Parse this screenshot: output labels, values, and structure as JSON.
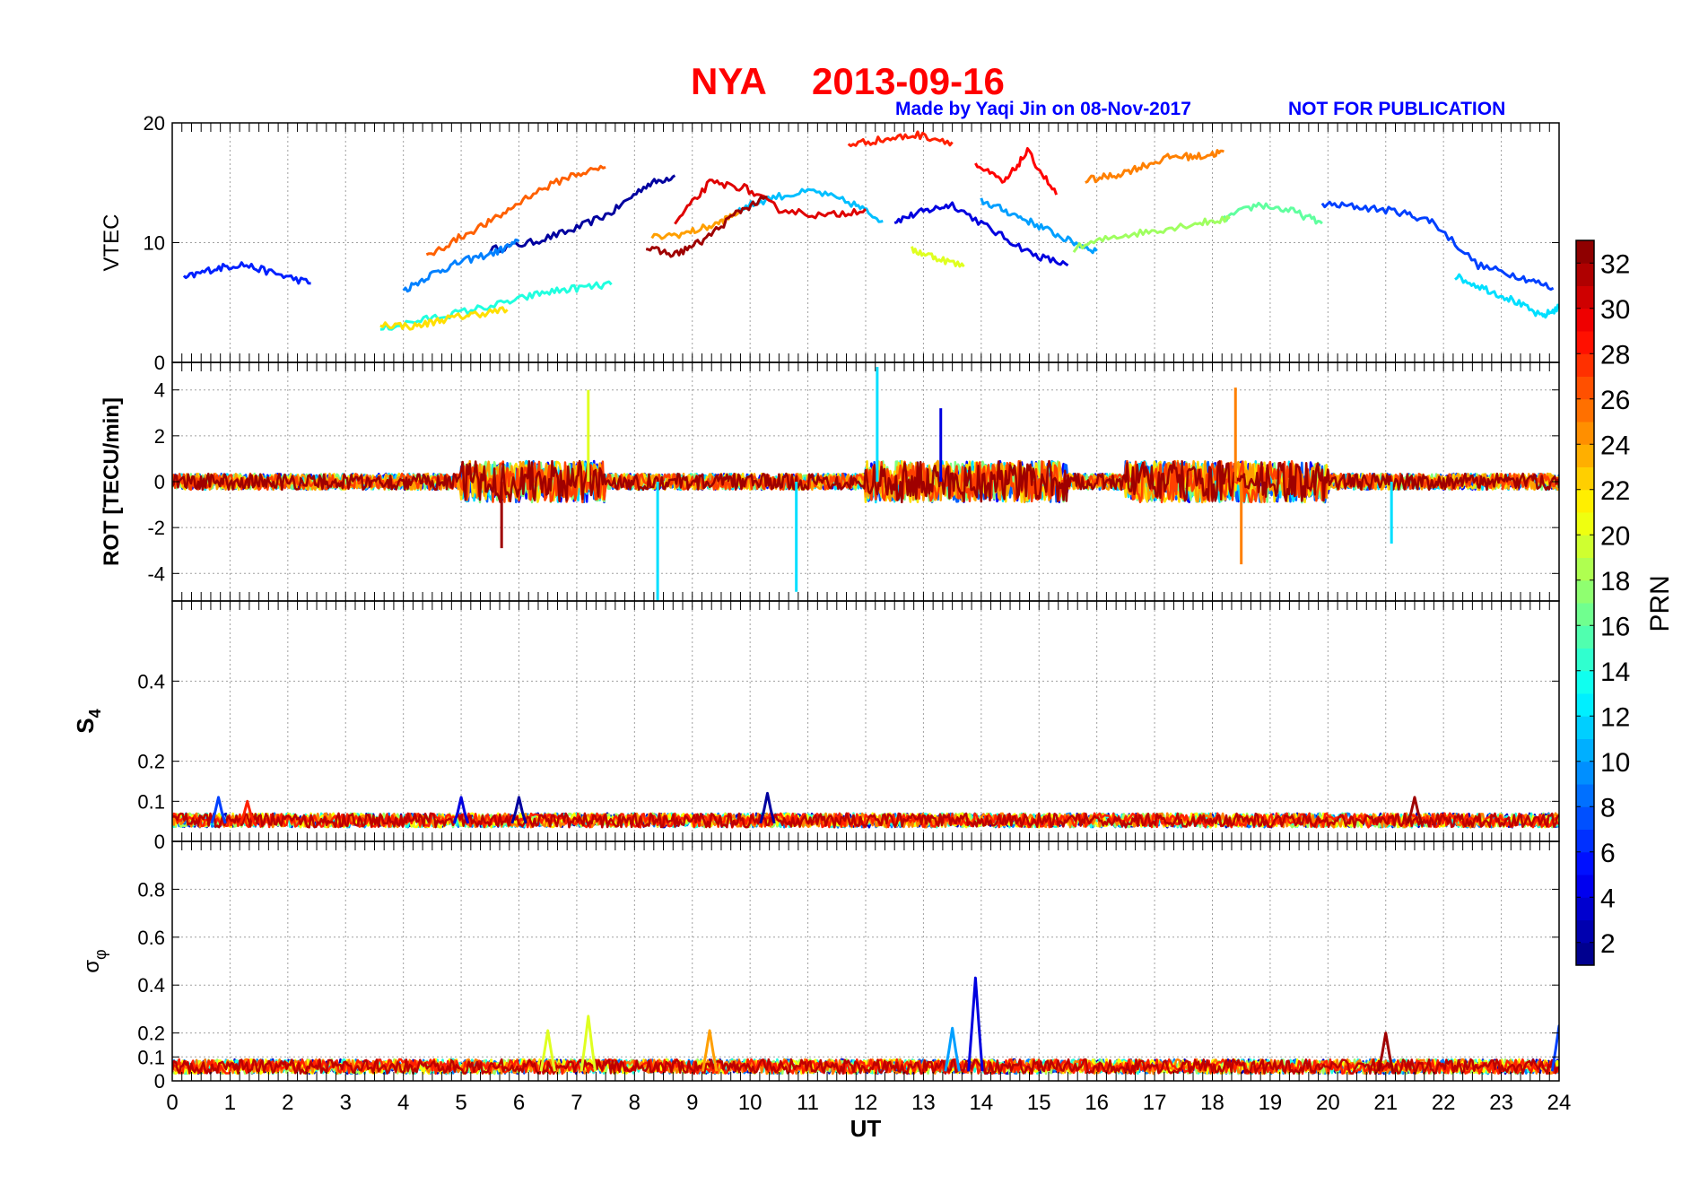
{
  "header": {
    "station": "NYA",
    "date": "2013-09-16",
    "credit": "Made by Yaqi Jin on 08-Nov-2017",
    "notice": "NOT FOR PUBLICATION"
  },
  "colors": {
    "title": "#ff0000",
    "credit": "#0000ff",
    "axis": "#000000",
    "grid": "#9a9a9a"
  },
  "colorbar": {
    "label": "PRN",
    "range": [
      1,
      33
    ],
    "ticks": [
      2,
      4,
      6,
      8,
      10,
      12,
      14,
      16,
      18,
      20,
      22,
      24,
      26,
      28,
      30,
      32
    ],
    "colormap": "jet"
  },
  "chart_data": [
    {
      "id": "vtec",
      "type": "line",
      "ylabel": "VTEC",
      "xlim": [
        0,
        24
      ],
      "ylim": [
        0,
        20
      ],
      "yticks": [
        0,
        10,
        20
      ],
      "grid": true,
      "series_by": "PRN",
      "series": [
        {
          "prn": 2,
          "points": [
            [
              5.5,
              9.4
            ],
            [
              6.2,
              10.0
            ],
            [
              6.9,
              11.0
            ],
            [
              7.6,
              12.5
            ],
            [
              8.2,
              14.8
            ],
            [
              8.7,
              15.6
            ]
          ]
        },
        {
          "prn": 4,
          "points": [
            [
              12.5,
              11.8
            ],
            [
              13.0,
              12.6
            ],
            [
              13.5,
              13.2
            ],
            [
              14.2,
              11.0
            ],
            [
              14.9,
              9.0
            ],
            [
              15.5,
              8.1
            ]
          ]
        },
        {
          "prn": 6,
          "points": [
            [
              0.2,
              7.0
            ],
            [
              0.7,
              7.8
            ],
            [
              1.2,
              8.2
            ],
            [
              1.8,
              7.4
            ],
            [
              2.4,
              6.6
            ]
          ]
        },
        {
          "prn": 7,
          "points": [
            [
              19.9,
              13.2
            ],
            [
              20.5,
              13.0
            ],
            [
              21.2,
              12.6
            ],
            [
              21.8,
              11.8
            ],
            [
              22.6,
              8.1
            ],
            [
              23.3,
              7.2
            ],
            [
              23.9,
              6.2
            ]
          ]
        },
        {
          "prn": 9,
          "points": [
            [
              4.0,
              6.0
            ],
            [
              4.5,
              7.4
            ],
            [
              5.0,
              8.4
            ],
            [
              5.6,
              9.2
            ],
            [
              6.0,
              10.1
            ]
          ]
        },
        {
          "prn": 10,
          "points": [
            [
              14.0,
              13.5
            ],
            [
              14.5,
              12.5
            ],
            [
              15.0,
              11.4
            ],
            [
              15.5,
              10.2
            ],
            [
              16.0,
              9.3
            ]
          ]
        },
        {
          "prn": 11,
          "points": [
            [
              9.8,
              12.8
            ],
            [
              10.4,
              13.8
            ],
            [
              11.1,
              14.3
            ],
            [
              11.8,
              13.2
            ],
            [
              12.3,
              11.8
            ]
          ]
        },
        {
          "prn": 12,
          "points": [
            [
              22.2,
              7.2
            ],
            [
              22.7,
              6.2
            ],
            [
              23.2,
              5.2
            ],
            [
              23.7,
              3.8
            ],
            [
              24.0,
              4.6
            ]
          ]
        },
        {
          "prn": 14,
          "points": [
            [
              3.6,
              2.8
            ],
            [
              4.3,
              3.5
            ],
            [
              5.0,
              4.2
            ],
            [
              5.8,
              5.0
            ],
            [
              6.4,
              5.8
            ],
            [
              7.0,
              6.2
            ],
            [
              7.6,
              6.5
            ]
          ]
        },
        {
          "prn": 16,
          "points": [
            [
              18.2,
              12.0
            ],
            [
              18.8,
              13.2
            ],
            [
              19.4,
              12.6
            ],
            [
              19.9,
              11.6
            ]
          ]
        },
        {
          "prn": 18,
          "points": [
            [
              15.6,
              9.5
            ],
            [
              16.3,
              10.5
            ],
            [
              17.0,
              11.0
            ],
            [
              17.7,
              11.6
            ],
            [
              18.3,
              12.0
            ]
          ]
        },
        {
          "prn": 20,
          "points": [
            [
              12.8,
              9.4
            ],
            [
              13.2,
              8.8
            ],
            [
              13.7,
              8.0
            ]
          ]
        },
        {
          "prn": 22,
          "points": [
            [
              3.6,
              3.2
            ],
            [
              4.2,
              3.0
            ],
            [
              4.7,
              3.6
            ],
            [
              5.2,
              4.0
            ],
            [
              5.8,
              4.4
            ]
          ]
        },
        {
          "prn": 24,
          "points": [
            [
              8.3,
              10.4
            ],
            [
              8.9,
              10.8
            ],
            [
              9.4,
              11.5
            ],
            [
              9.8,
              12.5
            ]
          ]
        },
        {
          "prn": 25,
          "points": [
            [
              15.8,
              15.2
            ],
            [
              16.3,
              15.6
            ],
            [
              16.8,
              16.4
            ],
            [
              17.3,
              17.2
            ],
            [
              17.8,
              17.2
            ],
            [
              18.2,
              17.6
            ]
          ]
        },
        {
          "prn": 26,
          "points": [
            [
              4.4,
              8.8
            ],
            [
              5.0,
              10.5
            ],
            [
              5.6,
              12.0
            ],
            [
              6.2,
              14.0
            ],
            [
              6.9,
              15.6
            ],
            [
              7.5,
              16.3
            ]
          ]
        },
        {
          "prn": 28,
          "points": [
            [
              11.7,
              18.2
            ],
            [
              12.3,
              18.6
            ],
            [
              12.9,
              19.0
            ],
            [
              13.5,
              18.4
            ]
          ]
        },
        {
          "prn": 29,
          "points": [
            [
              13.9,
              16.5
            ],
            [
              14.4,
              15.0
            ],
            [
              14.8,
              17.6
            ],
            [
              15.3,
              14.0
            ]
          ]
        },
        {
          "prn": 30,
          "points": [
            [
              8.7,
              11.6
            ],
            [
              9.3,
              15.0
            ],
            [
              9.9,
              14.6
            ],
            [
              10.5,
              12.8
            ],
            [
              11.3,
              12.2
            ],
            [
              12.0,
              12.8
            ]
          ]
        },
        {
          "prn": 32,
          "points": [
            [
              8.2,
              9.5
            ],
            [
              8.7,
              9.0
            ],
            [
              9.2,
              10.2
            ],
            [
              9.8,
              12.6
            ],
            [
              10.3,
              13.8
            ]
          ]
        }
      ]
    },
    {
      "id": "rot",
      "type": "line",
      "ylabel": "ROT [TECU/min]",
      "xlim": [
        0,
        24
      ],
      "ylim": [
        -5.2,
        5.2
      ],
      "yticks": [
        -4,
        -2,
        0,
        2,
        4
      ],
      "grid": true,
      "series_by": "PRN",
      "spikes": [
        {
          "x": 5.7,
          "y": -2.9,
          "prn": 32
        },
        {
          "x": 7.2,
          "y": 4.0,
          "prn": 20
        },
        {
          "x": 8.4,
          "y": -5.2,
          "prn": 12
        },
        {
          "x": 10.8,
          "y": -4.8,
          "prn": 12
        },
        {
          "x": 12.2,
          "y": 5.0,
          "prn": 12
        },
        {
          "x": 13.3,
          "y": 3.2,
          "prn": 4
        },
        {
          "x": 18.4,
          "y": 4.1,
          "prn": 25
        },
        {
          "x": 18.5,
          "y": -3.6,
          "prn": 25
        },
        {
          "x": 21.1,
          "y": -2.7,
          "prn": 12
        }
      ]
    },
    {
      "id": "s4",
      "type": "line",
      "ylabel": "S4",
      "xlim": [
        0,
        24
      ],
      "ylim": [
        0,
        0.6
      ],
      "yticks": [
        0,
        0.1,
        0.2,
        0.4
      ],
      "grid": true,
      "series_by": "PRN",
      "baseline": [
        0.035,
        0.07
      ],
      "peaks": [
        {
          "x": 0.8,
          "y": 0.11,
          "prn": 7
        },
        {
          "x": 1.3,
          "y": 0.1,
          "prn": 28
        },
        {
          "x": 5.0,
          "y": 0.11,
          "prn": 4
        },
        {
          "x": 6.0,
          "y": 0.11,
          "prn": 2
        },
        {
          "x": 10.3,
          "y": 0.12,
          "prn": 2
        },
        {
          "x": 21.5,
          "y": 0.11,
          "prn": 32
        }
      ]
    },
    {
      "id": "sigma_phi",
      "type": "line",
      "ylabel": "σφ",
      "xlabel": "UT",
      "xlim": [
        0,
        24
      ],
      "ylim": [
        0,
        1.0
      ],
      "yticks": [
        0,
        0.1,
        0.2,
        0.4,
        0.6,
        0.8
      ],
      "xticks": [
        0,
        1,
        2,
        3,
        4,
        5,
        6,
        7,
        8,
        9,
        10,
        11,
        12,
        13,
        14,
        15,
        16,
        17,
        18,
        19,
        20,
        21,
        22,
        23,
        24
      ],
      "grid": true,
      "series_by": "PRN",
      "baseline": [
        0.03,
        0.09
      ],
      "peaks": [
        {
          "x": 6.5,
          "y": 0.21,
          "prn": 20
        },
        {
          "x": 7.2,
          "y": 0.27,
          "prn": 20
        },
        {
          "x": 9.3,
          "y": 0.21,
          "prn": 24
        },
        {
          "x": 13.9,
          "y": 0.43,
          "prn": 4
        },
        {
          "x": 13.5,
          "y": 0.22,
          "prn": 10
        },
        {
          "x": 21.0,
          "y": 0.2,
          "prn": 32
        },
        {
          "x": 24.0,
          "y": 0.23,
          "prn": 7
        }
      ]
    }
  ]
}
